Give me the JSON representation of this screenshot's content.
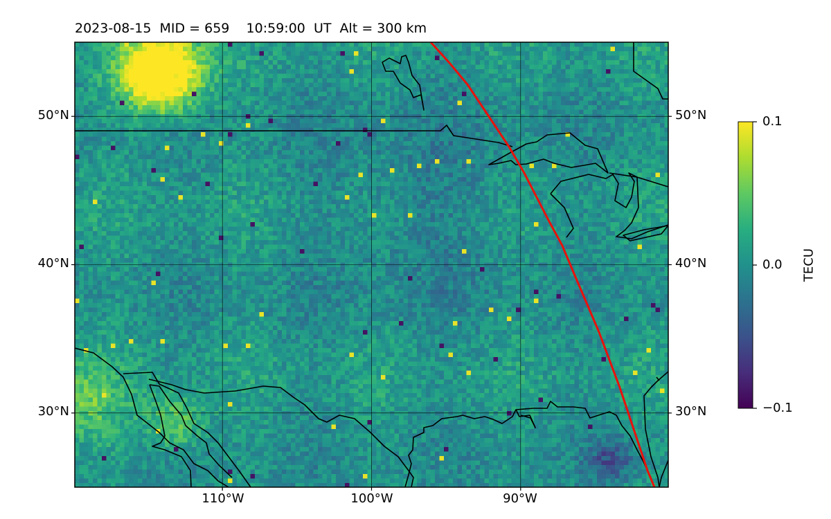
{
  "title": "2023-08-15  MID = 659    10:59:00  UT  Alt = 300 km",
  "map": {
    "lat_labels": [
      "50°N",
      "40°N",
      "30°N"
    ],
    "lon_labels": [
      "110°W",
      "100°W",
      "90°W"
    ],
    "extent": {
      "lon_min": -119.9,
      "lon_max": -80.1,
      "lat_min": 25.0,
      "lat_max": 55.0
    },
    "gridlines": true,
    "satellite_track_color": "#e8120c",
    "coastline_color": "#000000"
  },
  "colorbar": {
    "label": "TECU",
    "tick_labels": [
      "0.1",
      "0.0",
      "−0.1"
    ],
    "vmin": -0.1,
    "vmax": 0.1,
    "colormap": "viridis"
  }
}
